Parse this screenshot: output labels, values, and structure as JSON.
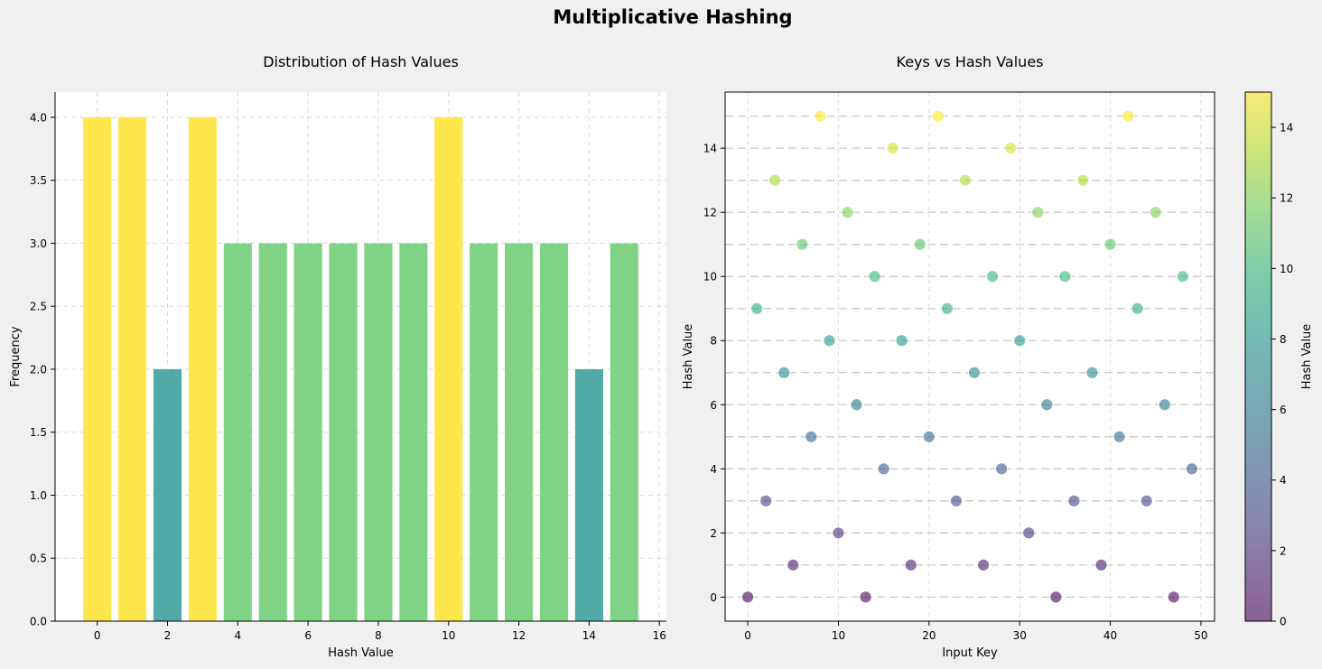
{
  "suptitle": "Multiplicative Hashing",
  "chart_data": [
    {
      "type": "bar",
      "title": "Distribution of Hash Values",
      "xlabel": "Hash Value",
      "ylabel": "Frequency",
      "categories": [
        0,
        1,
        2,
        3,
        4,
        5,
        6,
        7,
        8,
        9,
        10,
        11,
        12,
        13,
        14,
        15
      ],
      "values": [
        4,
        4,
        2,
        4,
        3,
        3,
        3,
        3,
        3,
        3,
        4,
        3,
        3,
        3,
        2,
        3
      ],
      "colors": [
        "#fde74c",
        "#fde74c",
        "#52aaa6",
        "#fde74c",
        "#80d385",
        "#80d385",
        "#80d385",
        "#80d385",
        "#80d385",
        "#80d385",
        "#fde74c",
        "#80d385",
        "#80d385",
        "#80d385",
        "#52aaa6",
        "#80d385"
      ],
      "xlim": [
        -1.2,
        16.2
      ],
      "ylim": [
        0,
        4.2
      ],
      "xticks": [
        0,
        2,
        4,
        6,
        8,
        10,
        12,
        14,
        16
      ],
      "yticks": [
        0.0,
        0.5,
        1.0,
        1.5,
        2.0,
        2.5,
        3.0,
        3.5,
        4.0
      ],
      "ytick_labels": [
        "0.0",
        "0.5",
        "1.0",
        "1.5",
        "2.0",
        "2.5",
        "3.0",
        "3.5",
        "4.0"
      ],
      "grid": true
    },
    {
      "type": "scatter",
      "title": "Keys vs Hash Values",
      "xlabel": "Input Key",
      "ylabel": "Hash Value",
      "x": [
        0,
        1,
        2,
        3,
        4,
        5,
        6,
        7,
        8,
        9,
        10,
        11,
        12,
        13,
        14,
        15,
        16,
        17,
        18,
        19,
        20,
        21,
        22,
        23,
        24,
        25,
        26,
        27,
        28,
        29,
        30,
        31,
        32,
        33,
        34,
        35,
        36,
        37,
        38,
        39,
        40,
        41,
        42,
        43,
        44,
        45,
        46,
        47,
        48,
        49
      ],
      "y": [
        0,
        9,
        3,
        13,
        7,
        1,
        11,
        5,
        15,
        8,
        2,
        12,
        6,
        0,
        10,
        4,
        14,
        8,
        1,
        11,
        5,
        15,
        9,
        3,
        13,
        7,
        1,
        10,
        4,
        14,
        8,
        2,
        12,
        6,
        0,
        10,
        3,
        13,
        7,
        1,
        11,
        5,
        15,
        9,
        3,
        12,
        6,
        0,
        10,
        4
      ],
      "xlim": [
        -2.5,
        51.5
      ],
      "ylim": [
        -0.75,
        15.75
      ],
      "xticks": [
        0,
        10,
        20,
        30,
        40,
        50
      ],
      "yticks": [
        0,
        2,
        4,
        6,
        8,
        10,
        12,
        14
      ],
      "hlines": [
        0,
        1,
        2,
        3,
        4,
        5,
        6,
        7,
        8,
        9,
        10,
        11,
        12,
        13,
        14,
        15
      ],
      "grid": true,
      "colormap": "viridis",
      "colorbar": {
        "label": "Hash Value",
        "range": [
          0,
          15
        ],
        "ticks": [
          0,
          2,
          4,
          6,
          8,
          10,
          12,
          14
        ]
      }
    }
  ]
}
